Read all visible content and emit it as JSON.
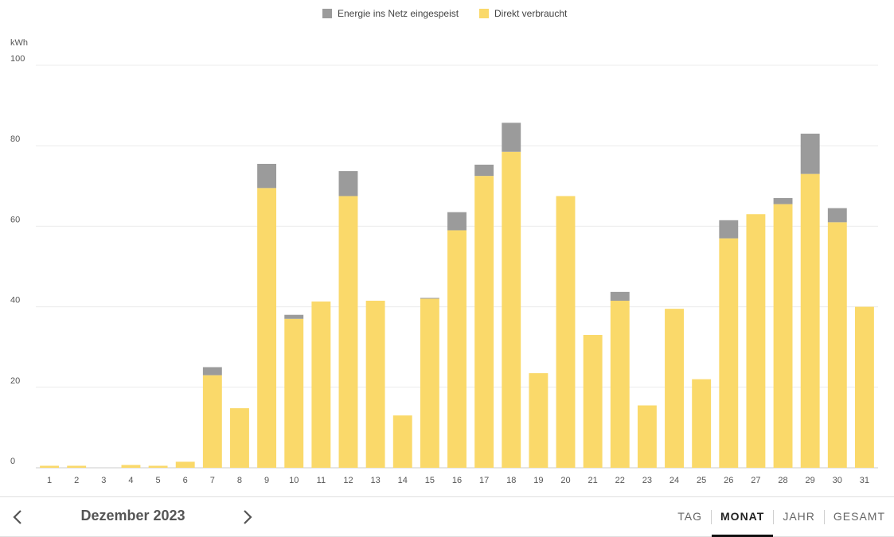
{
  "chart_data": {
    "type": "bar",
    "stacked": true,
    "ylabel": "kWh",
    "ylim": [
      0,
      100
    ],
    "yticks": [
      0,
      20,
      40,
      60,
      80,
      100
    ],
    "grid": true,
    "legend_position": "top-center",
    "categories": [
      "1",
      "2",
      "3",
      "4",
      "5",
      "6",
      "7",
      "8",
      "9",
      "10",
      "11",
      "12",
      "13",
      "14",
      "15",
      "16",
      "17",
      "18",
      "19",
      "20",
      "21",
      "22",
      "23",
      "24",
      "25",
      "26",
      "27",
      "28",
      "29",
      "30",
      "31"
    ],
    "series": [
      {
        "name": "Direkt verbraucht",
        "color": "#fad96a",
        "values": [
          0.5,
          0.5,
          0,
          0.7,
          0.5,
          1.5,
          23,
          14.8,
          69.5,
          37,
          41.3,
          67.5,
          41.5,
          13,
          42,
          59,
          72.5,
          78.5,
          23.5,
          67.5,
          33,
          41.5,
          15.5,
          39.5,
          22,
          57,
          63,
          65.5,
          73,
          61,
          40
        ]
      },
      {
        "name": "Energie ins Netz eingespeist",
        "color": "#9b9b9b",
        "values": [
          0,
          0,
          0,
          0,
          0,
          0,
          2,
          0,
          6,
          1,
          0,
          6.2,
          0,
          0,
          0.2,
          4.5,
          2.8,
          7.2,
          0,
          0,
          0,
          2.2,
          0,
          0,
          0,
          4.5,
          0,
          1.5,
          10,
          3.5,
          0
        ]
      }
    ]
  },
  "legend": [
    {
      "label": "Energie ins Netz eingespeist",
      "color": "#9b9b9b"
    },
    {
      "label": "Direkt verbraucht",
      "color": "#fad96a"
    }
  ],
  "nav": {
    "period": "Dezember 2023",
    "prev_icon": "chevron-left-icon",
    "next_icon": "chevron-right-icon"
  },
  "tabs": [
    {
      "label": "TAG",
      "active": false
    },
    {
      "label": "MONAT",
      "active": true
    },
    {
      "label": "JAHR",
      "active": false
    },
    {
      "label": "GESAMT",
      "active": false
    }
  ]
}
